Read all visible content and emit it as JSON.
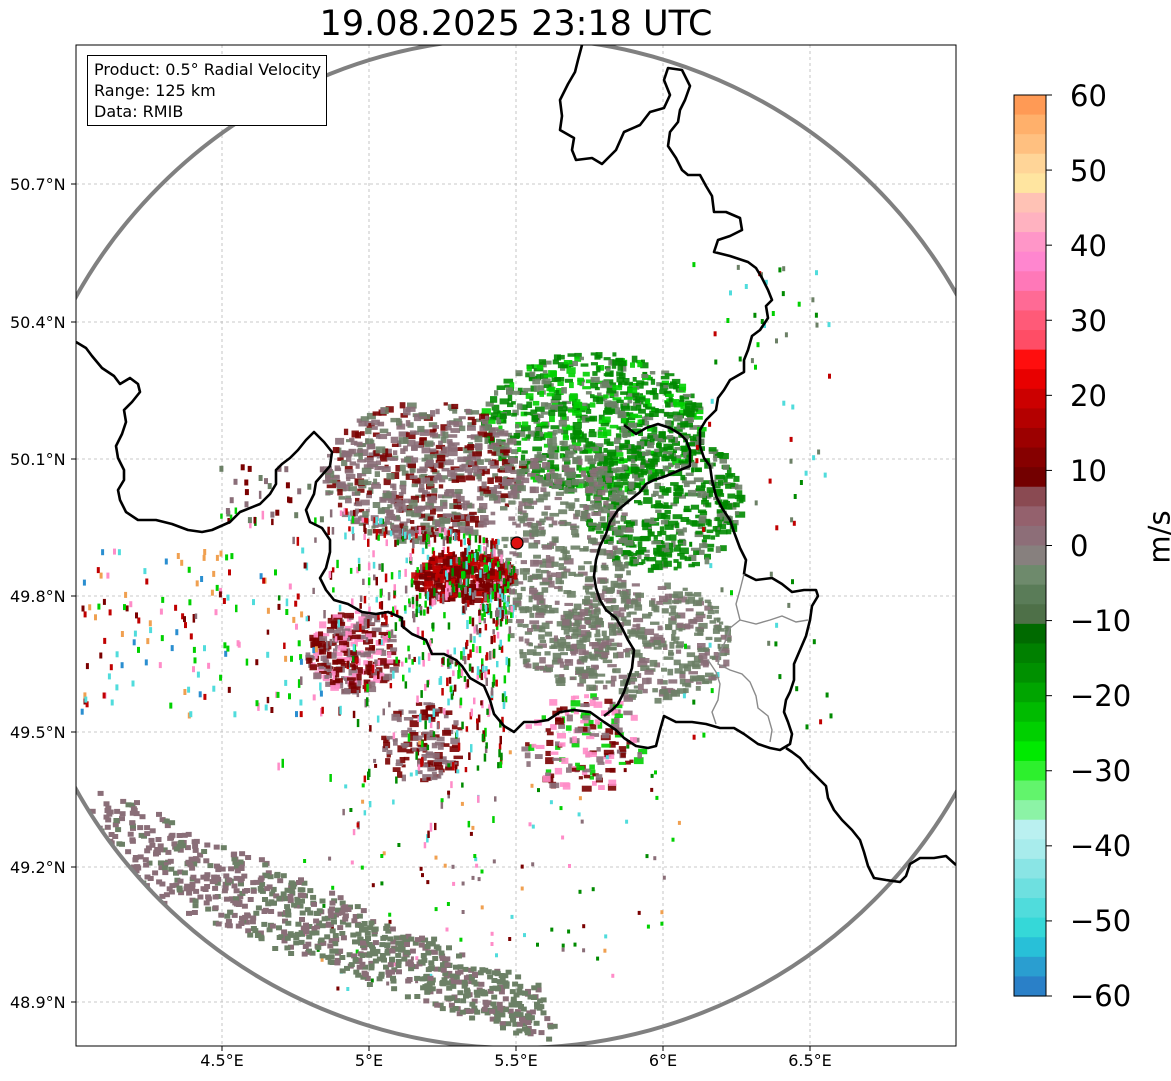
{
  "title": "19.08.2025 23:18 UTC",
  "info": {
    "product": "Product: 0.5° Radial Velocity",
    "range": "Range: 125 km",
    "data": "Data: RMIB"
  },
  "lat_ticks": [
    "50.7°N",
    "50.4°N",
    "50.1°N",
    "49.8°N",
    "49.5°N",
    "49.2°N",
    "48.9°N"
  ],
  "lon_ticks": [
    "4.5°E",
    "5°E",
    "5.5°E",
    "6°E",
    "6.5°E"
  ],
  "colorbar": {
    "unit": "m/s",
    "ticks": [
      "60",
      "50",
      "40",
      "30",
      "20",
      "10",
      "0",
      "−10",
      "−20",
      "−30",
      "−40",
      "−50",
      "−60"
    ],
    "colors": [
      "#ff9a55",
      "#ffb06b",
      "#ffc080",
      "#ffd598",
      "#ffe5a0",
      "#ffc2b5",
      "#ffb2c0",
      "#ff96c8",
      "#ff86cf",
      "#ff78b8",
      "#ff6a95",
      "#ff5a78",
      "#ff4d66",
      "#ff0e0e",
      "#e80000",
      "#cc0000",
      "#b40000",
      "#9c0000",
      "#860000",
      "#730000",
      "#8a4a52",
      "#94616d",
      "#8d6e78",
      "#87807e",
      "#6e8a6c",
      "#5a7c58",
      "#4e7048",
      "#006a00",
      "#008000",
      "#009000",
      "#00a500",
      "#00bb00",
      "#00d000",
      "#00ea00",
      "#2df02d",
      "#62f46c",
      "#8cf3a6",
      "#baf0f0",
      "#a8ecec",
      "#8ae5e5",
      "#6ee0e0",
      "#50dcdc",
      "#35d8d8",
      "#28c0d8",
      "#2a9ed0",
      "#2a80c8"
    ]
  },
  "radar": {
    "label": "radar-site",
    "colors": {
      "dark_red": "#7a0000",
      "red": "#c00000",
      "mauve": "#8a6e78",
      "gray_green": "#6c8066",
      "green": "#008a00",
      "bright_green": "#00d000",
      "pink": "#ff8cc8",
      "cyan": "#50dcdc",
      "blue": "#2a8ed0",
      "orange": "#f0a050",
      "site": "#e01010"
    }
  }
}
